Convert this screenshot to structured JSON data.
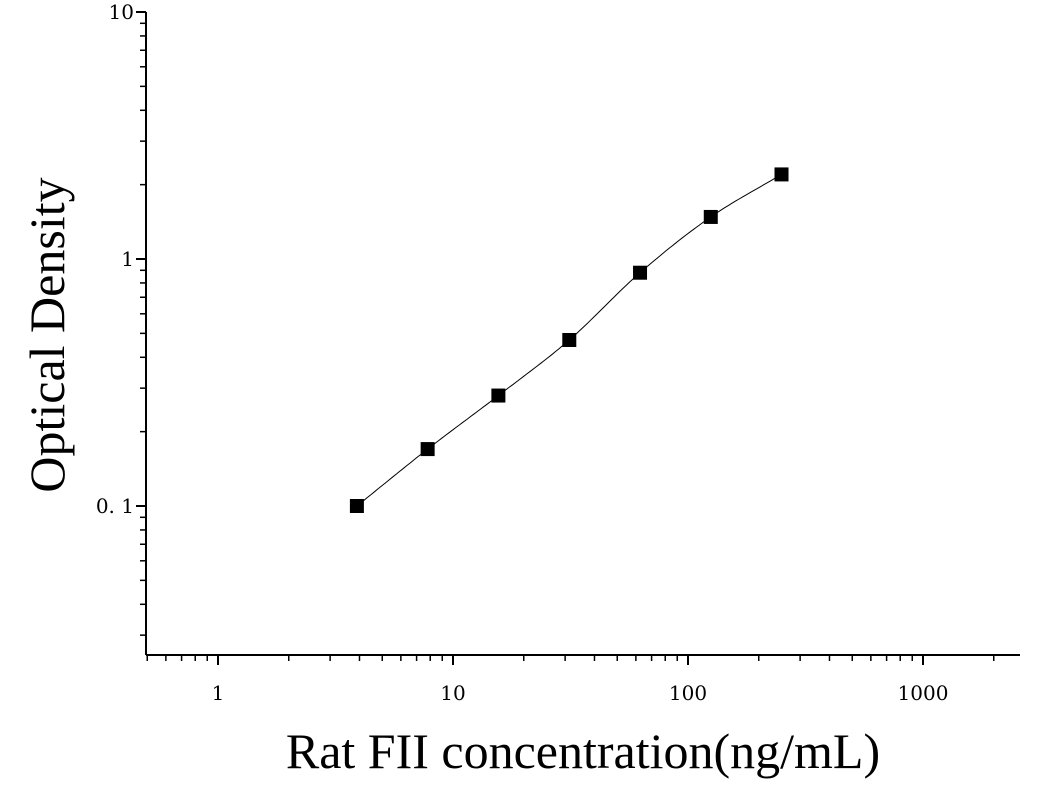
{
  "chart_data": {
    "type": "scatter",
    "xlabel": "Rat FII concentration(ng/mL)",
    "ylabel": "Optical Density",
    "xscale": "log",
    "yscale": "log",
    "xlim": [
      0.5,
      2500
    ],
    "ylim": [
      0.03,
      10
    ],
    "x_ticks": [
      1,
      10,
      100,
      1000
    ],
    "x_tick_labels": [
      "1",
      "10",
      "100",
      "1000"
    ],
    "y_ticks": [
      0.1,
      1,
      10
    ],
    "y_tick_labels": [
      "0. 1",
      "1",
      "10"
    ],
    "grid": false,
    "series": [
      {
        "marker": "square",
        "color": "#000000",
        "x": [
          3.9,
          7.8,
          15.6,
          31.25,
          62.5,
          125,
          250
        ],
        "y": [
          0.1,
          0.17,
          0.28,
          0.47,
          0.88,
          1.48,
          2.2
        ]
      }
    ],
    "fit_curve": {
      "style": "smooth",
      "color": "#000000"
    }
  }
}
